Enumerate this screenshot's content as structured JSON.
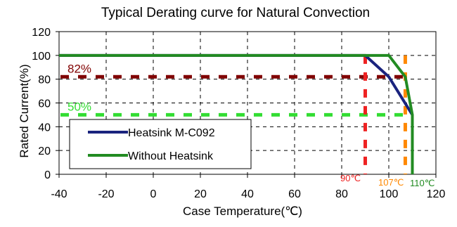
{
  "chart_data": {
    "type": "line",
    "title": "Typical Derating curve for Natural Convection",
    "xlabel": "Case Temperature(℃)",
    "ylabel": "Rated Current(%)",
    "xlim": [
      -40,
      120
    ],
    "ylim": [
      0,
      120
    ],
    "xticks": [
      "-40",
      "-20",
      "0",
      "20",
      "40",
      "60",
      "80",
      "100",
      "120"
    ],
    "yticks": [
      "0",
      "20",
      "40",
      "60",
      "80",
      "100",
      "120"
    ],
    "grid": true,
    "legend_position": "bottom-left",
    "series": [
      {
        "name": "Heatsink M-C092",
        "color": "#1a237e",
        "x": [
          -40,
          90,
          100,
          110
        ],
        "y": [
          100,
          100,
          82,
          50
        ]
      },
      {
        "name": "Without Heatsink",
        "color": "#228b22",
        "x": [
          -40,
          100,
          107,
          110,
          110
        ],
        "y": [
          100,
          100,
          82,
          50,
          0
        ]
      }
    ],
    "reference_lines": [
      {
        "label": "82%",
        "value": 82,
        "orientation": "horizontal",
        "color": "#800000"
      },
      {
        "label": "50%",
        "value": 50,
        "orientation": "horizontal",
        "color": "#33dd33"
      },
      {
        "label": "90℃",
        "value": 90,
        "orientation": "vertical",
        "color": "#ee2222"
      },
      {
        "label": "107℃",
        "value": 107,
        "orientation": "vertical",
        "color": "#ff8800"
      },
      {
        "label": "110℃",
        "value": 110,
        "orientation": "vertical",
        "color": "#228b22"
      }
    ]
  }
}
